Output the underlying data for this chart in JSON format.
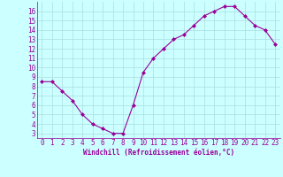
{
  "x": [
    0,
    1,
    2,
    3,
    4,
    5,
    6,
    7,
    8,
    9,
    10,
    11,
    12,
    13,
    14,
    15,
    16,
    17,
    18,
    19,
    20,
    21,
    22,
    23
  ],
  "y": [
    8.5,
    8.5,
    7.5,
    6.5,
    5.0,
    4.0,
    3.5,
    3.0,
    3.0,
    6.0,
    9.5,
    11.0,
    12.0,
    13.0,
    13.5,
    14.5,
    15.5,
    16.0,
    16.5,
    16.5,
    15.5,
    14.5,
    14.0,
    12.5
  ],
  "line_color": "#990099",
  "marker": "D",
  "marker_size": 2,
  "bg_color": "#ccffff",
  "grid_color": "#aadddd",
  "xlabel": "Windchill (Refroidissement éolien,°C)",
  "xlabel_color": "#990099",
  "tick_color": "#990099",
  "xlim": [
    -0.5,
    23.5
  ],
  "ylim": [
    2.5,
    17.0
  ],
  "yticks": [
    3,
    4,
    5,
    6,
    7,
    8,
    9,
    10,
    11,
    12,
    13,
    14,
    15,
    16
  ],
  "xticks": [
    0,
    1,
    2,
    3,
    4,
    5,
    6,
    7,
    8,
    9,
    10,
    11,
    12,
    13,
    14,
    15,
    16,
    17,
    18,
    19,
    20,
    21,
    22,
    23
  ],
  "tick_fontsize": 5.5,
  "xlabel_fontsize": 5.5
}
